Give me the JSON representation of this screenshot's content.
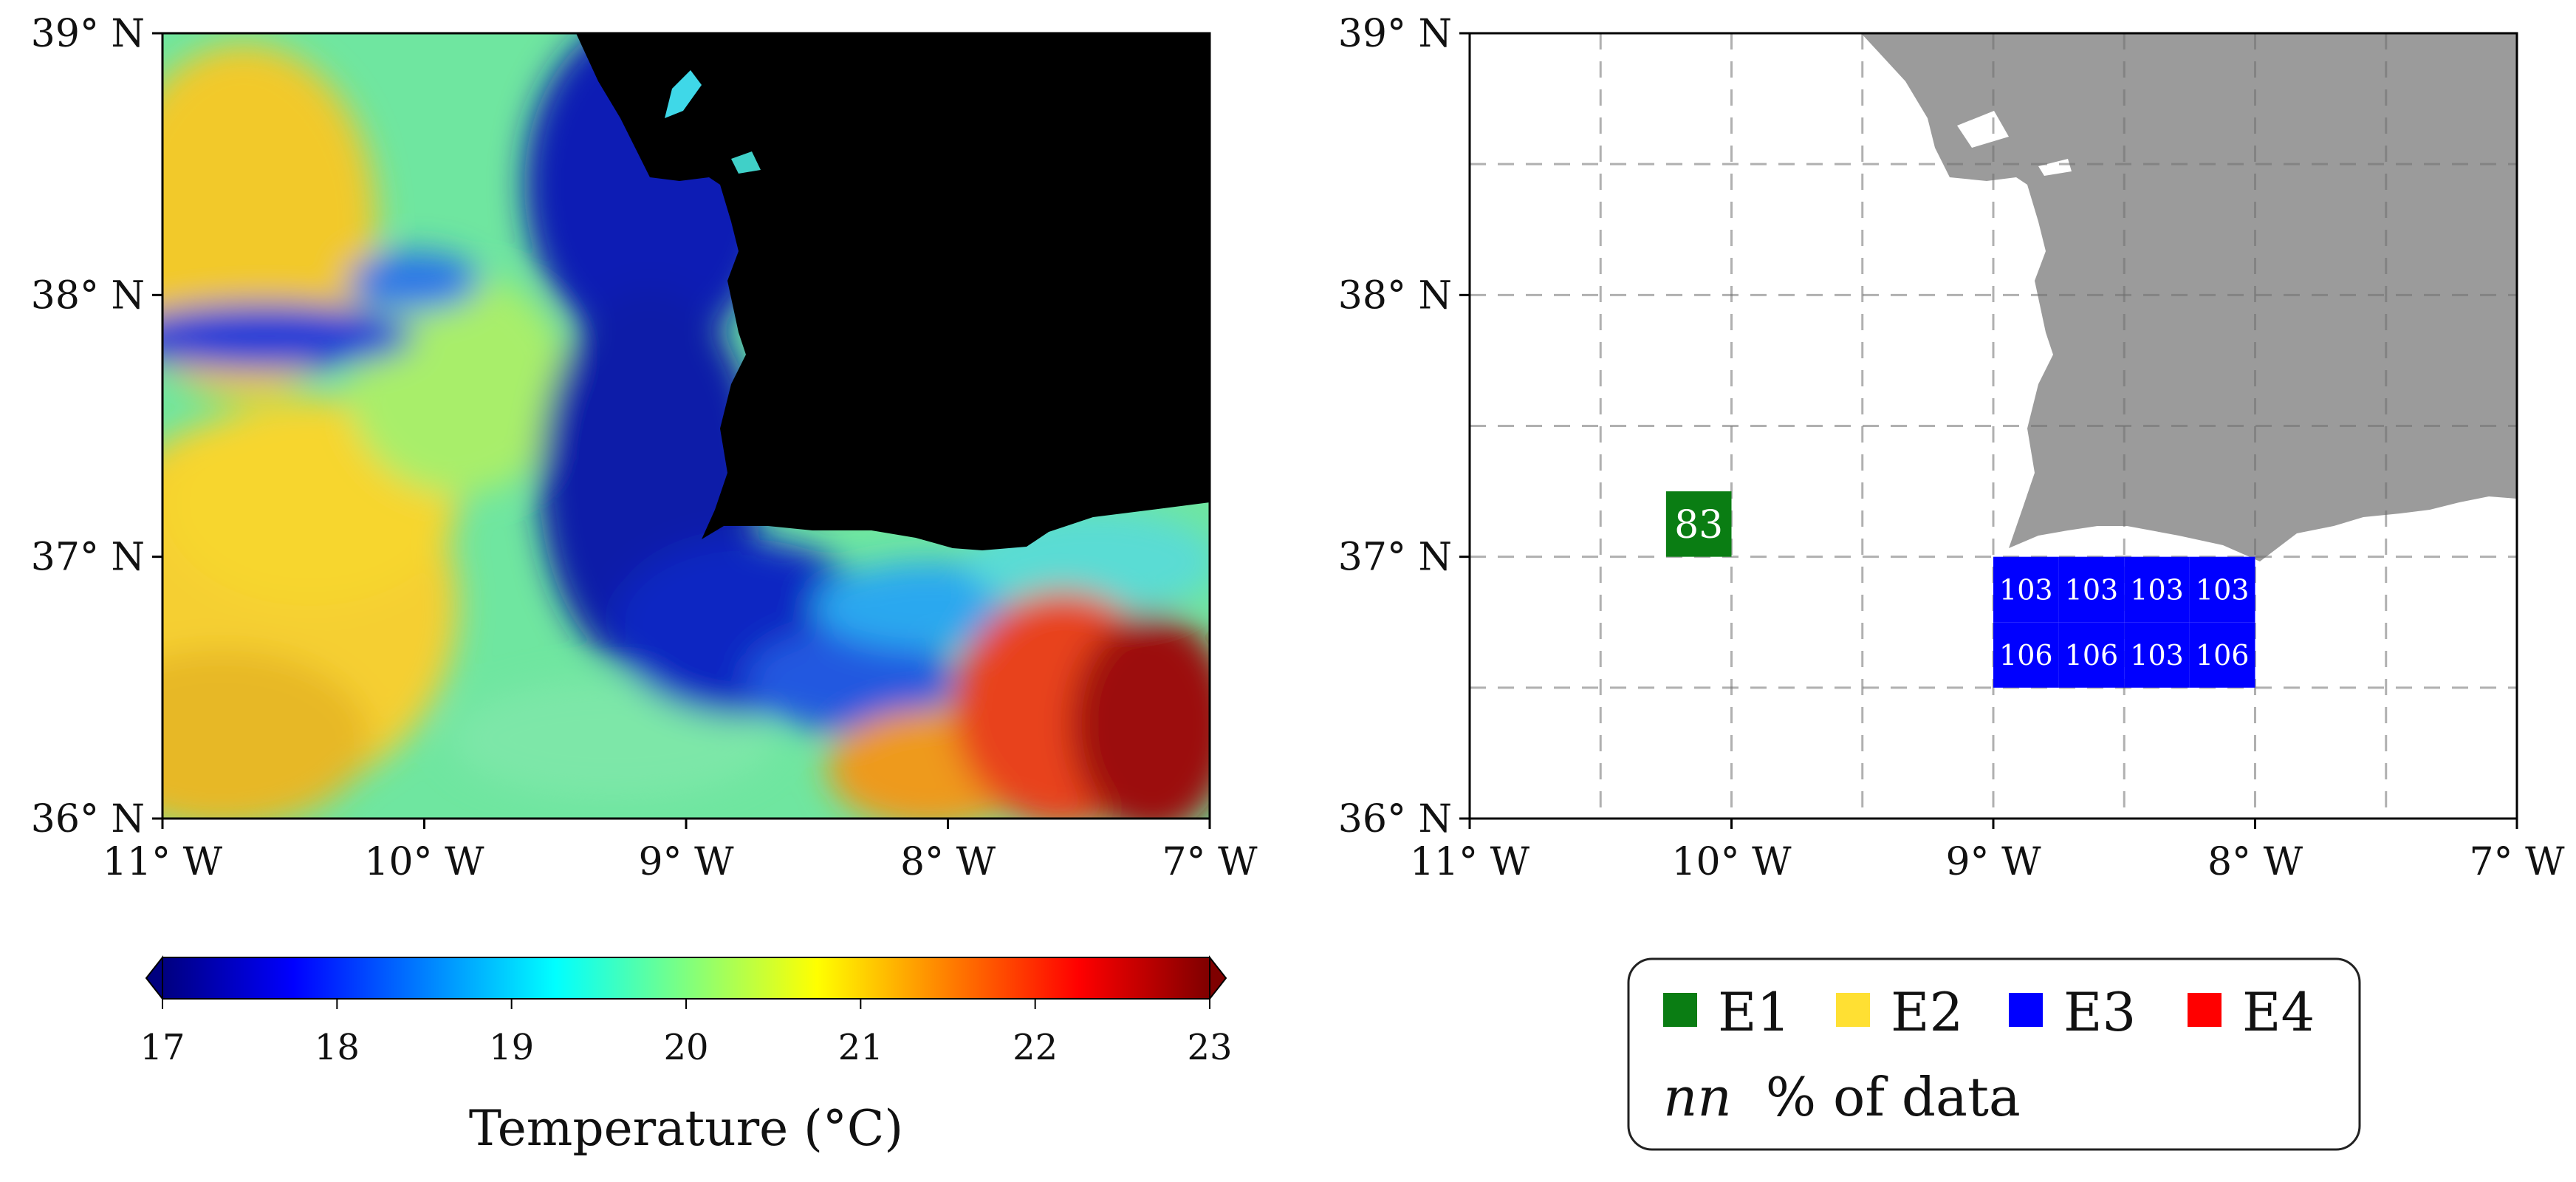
{
  "chart_data": [
    {
      "type": "heatmap",
      "name_hint": "sea surface temperature map",
      "xlim": [
        -11,
        -7
      ],
      "ylim": [
        36,
        39
      ],
      "x_ticks": [
        {
          "value": -11,
          "label": "11° W"
        },
        {
          "value": -10,
          "label": "10° W"
        },
        {
          "value": -9,
          "label": "9° W"
        },
        {
          "value": -8,
          "label": "8° W"
        },
        {
          "value": -7,
          "label": "7° W"
        }
      ],
      "y_ticks": [
        {
          "value": 36,
          "label": "36° N"
        },
        {
          "value": 37,
          "label": "37° N"
        },
        {
          "value": 38,
          "label": "38° N"
        },
        {
          "value": 39,
          "label": "39° N"
        }
      ],
      "colormap": "jet",
      "land_color": "#000000",
      "colorbar": {
        "range": [
          17,
          23
        ],
        "extend": "both",
        "ticks": [
          {
            "value": 17,
            "label": "17"
          },
          {
            "value": 18,
            "label": "18"
          },
          {
            "value": 19,
            "label": "19"
          },
          {
            "value": 20,
            "label": "20"
          },
          {
            "value": 21,
            "label": "21"
          },
          {
            "value": 22,
            "label": "22"
          },
          {
            "value": 23,
            "label": "23"
          }
        ],
        "label": "Temperature (°C)"
      }
    },
    {
      "type": "heatmap",
      "xlim": [
        -11,
        -7
      ],
      "ylim": [
        36,
        39
      ],
      "x_ticks": [
        {
          "value": -11,
          "label": "11° W"
        },
        {
          "value": -10,
          "label": "10° W"
        },
        {
          "value": -9,
          "label": "9° W"
        },
        {
          "value": -8,
          "label": "8° W"
        },
        {
          "value": -7,
          "label": "7° W"
        }
      ],
      "y_ticks": [
        {
          "value": 36,
          "label": "36° N"
        },
        {
          "value": 37,
          "label": "37° N"
        },
        {
          "value": 38,
          "label": "38° N"
        },
        {
          "value": 39,
          "label": "39° N"
        }
      ],
      "grid": true,
      "grid_step_deg": 0.5,
      "land_color": "#9b9b9b",
      "cells": [
        {
          "lon": -10.25,
          "lat": 37.0,
          "class": "E1",
          "value": "83"
        },
        {
          "lon": -9.0,
          "lat": 36.75,
          "class": "E3",
          "value": "103"
        },
        {
          "lon": -8.75,
          "lat": 36.75,
          "class": "E3",
          "value": "103"
        },
        {
          "lon": -8.5,
          "lat": 36.75,
          "class": "E3",
          "value": "103"
        },
        {
          "lon": -8.25,
          "lat": 36.75,
          "class": "E3",
          "value": "103"
        },
        {
          "lon": -9.0,
          "lat": 36.5,
          "class": "E3",
          "value": "106"
        },
        {
          "lon": -8.75,
          "lat": 36.5,
          "class": "E3",
          "value": "106"
        },
        {
          "lon": -8.5,
          "lat": 36.5,
          "class": "E3",
          "value": "103"
        },
        {
          "lon": -8.25,
          "lat": 36.5,
          "class": "E3",
          "value": "106"
        }
      ],
      "legend": {
        "placement": "bottom",
        "entries": [
          {
            "label": "E1",
            "color": "#0a7d13"
          },
          {
            "label": "E2",
            "color": "#ffe033"
          },
          {
            "label": "E3",
            "color": "#0000ff"
          },
          {
            "label": "E4",
            "color": "#ff0000"
          }
        ],
        "note_symbol": "nn",
        "note_text": "% of data"
      }
    }
  ]
}
